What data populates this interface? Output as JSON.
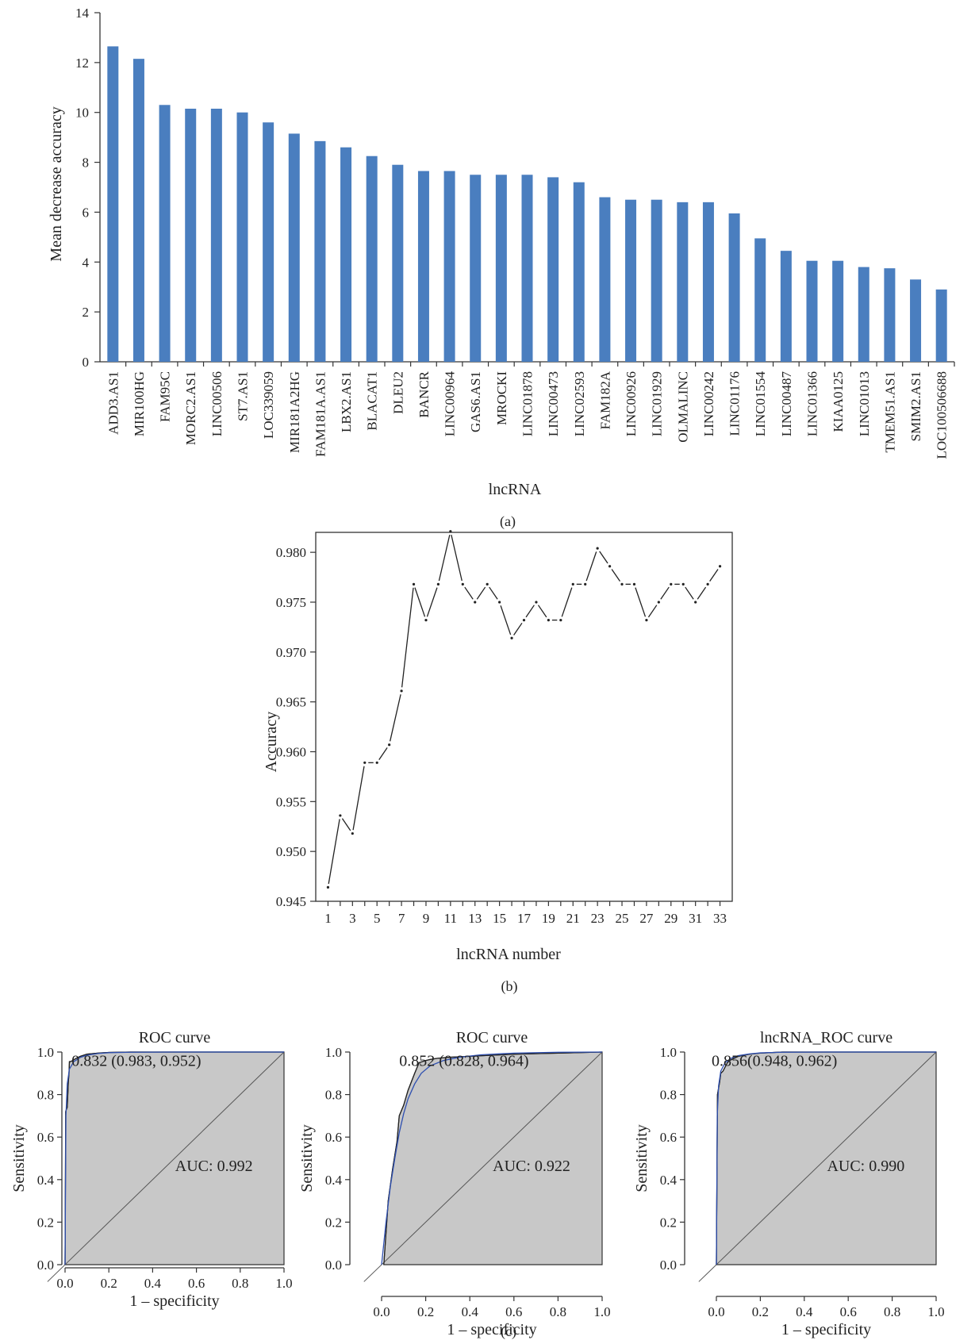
{
  "colors": {
    "bar": "#4a7ebf",
    "roc_fill": "#c8c8c8",
    "smooth_curve": "#2e4fb0",
    "empirical_curve": "#222222",
    "diagonal": "#555555"
  },
  "panels": {
    "a": "(a)",
    "b": "(b)",
    "c": "(c)"
  },
  "chart_data": [
    {
      "type": "bar",
      "panel": "(a)",
      "xlabel": "lncRNA",
      "ylabel": "Mean decrease accuracy",
      "ylim": [
        0,
        14
      ],
      "yticks": [
        0,
        2,
        4,
        6,
        8,
        10,
        12,
        14
      ],
      "grid": false,
      "categories": [
        "ADD3.AS1",
        "MIR100HG",
        "FAM95C",
        "MORC2.AS1",
        "LINC00506",
        "ST7.AS1",
        "LOC339059",
        "MIR181A2HG",
        "FAM181A.AS1",
        "LBX2.AS1",
        "BLACAT1",
        "DLEU2",
        "BANCR",
        "LINC00964",
        "GAS6.AS1",
        "MROCKI",
        "LINC01878",
        "LINC00473",
        "LINC02593",
        "FAM182A",
        "LINC00926",
        "LINC01929",
        "OLMALINC",
        "LINC00242",
        "LINC01176",
        "LINC01554",
        "LINC00487",
        "LINC01366",
        "KIAA0125",
        "LINC01013",
        "TMEM51.AS1",
        "SMIM2.AS1",
        "LOC100506688"
      ],
      "values": [
        12.65,
        12.15,
        10.3,
        10.15,
        10.15,
        10.0,
        9.6,
        9.15,
        8.85,
        8.6,
        8.25,
        7.9,
        7.65,
        7.65,
        7.5,
        7.5,
        7.5,
        7.4,
        7.2,
        6.6,
        6.5,
        6.5,
        6.4,
        6.4,
        5.95,
        4.95,
        4.45,
        4.05,
        4.05,
        3.8,
        3.75,
        3.3,
        2.9
      ]
    },
    {
      "type": "line",
      "panel": "(b)",
      "xlabel": "lncRNA number",
      "ylabel": "Accuracy",
      "xlim": [
        0,
        34
      ],
      "ylim": [
        0.945,
        0.982
      ],
      "yticks": [
        0.945,
        0.95,
        0.955,
        0.96,
        0.965,
        0.97,
        0.975,
        0.98
      ],
      "xticks": [
        1,
        3,
        5,
        7,
        9,
        11,
        13,
        15,
        17,
        19,
        21,
        23,
        25,
        27,
        29,
        31,
        33
      ],
      "grid": false,
      "x": [
        1,
        2,
        3,
        4,
        5,
        6,
        7,
        8,
        9,
        10,
        11,
        12,
        13,
        14,
        15,
        16,
        17,
        18,
        19,
        20,
        21,
        22,
        23,
        24,
        25,
        26,
        27,
        28,
        29,
        30,
        31,
        32,
        33
      ],
      "y": [
        0.9464,
        0.9536,
        0.9518,
        0.9589,
        0.9589,
        0.9607,
        0.9661,
        0.9768,
        0.9732,
        0.9768,
        0.9821,
        0.9768,
        0.975,
        0.9768,
        0.975,
        0.9714,
        0.9732,
        0.975,
        0.9732,
        0.9732,
        0.9768,
        0.9768,
        0.9804,
        0.9786,
        0.9768,
        0.9768,
        0.9732,
        0.975,
        0.9768,
        0.9768,
        0.975,
        0.9768,
        0.9786
      ]
    },
    {
      "type": "line",
      "panel": "(c)",
      "title": "ROC curve",
      "xlabel": "1 – specificity",
      "ylabel": "Sensitivity",
      "xlim": [
        0,
        1
      ],
      "ylim": [
        0,
        1
      ],
      "ticks": [
        "0.0",
        "0.2",
        "0.4",
        "0.6",
        "0.8",
        "1.0"
      ],
      "threshold_label": "0.832 (0.983, 0.952)",
      "auc_label": "AUC: 0.992",
      "series": [
        {
          "x": [
            0,
            0.003,
            0.006,
            0.01,
            0.015,
            0.018,
            0.02,
            0.025,
            0.035,
            0.05,
            0.07,
            0.1,
            0.15,
            0.2,
            0.3,
            0.5,
            1.0
          ],
          "y": [
            0,
            0.72,
            0.73,
            0.74,
            0.86,
            0.9,
            0.955,
            0.955,
            0.96,
            0.97,
            0.98,
            0.99,
            0.995,
            0.998,
            1.0,
            1.0,
            1.0
          ]
        },
        {
          "x": [
            0,
            0.004,
            0.01,
            0.02,
            0.04,
            0.07,
            0.1,
            0.15,
            0.2,
            0.3,
            0.5,
            1.0
          ],
          "y": [
            0,
            0.7,
            0.85,
            0.92,
            0.955,
            0.975,
            0.985,
            0.993,
            0.997,
            0.999,
            1.0,
            1.0
          ]
        }
      ]
    },
    {
      "type": "line",
      "panel": "(c)",
      "title": "ROC curve",
      "xlabel": "1 – specificity",
      "ylabel": "Sensitivity",
      "xlim": [
        0,
        1
      ],
      "ylim": [
        0,
        1
      ],
      "ticks": [
        "0.0",
        "0.2",
        "0.4",
        "0.6",
        "0.8",
        "1.0"
      ],
      "threshold_label": "0.852 (0.828, 0.964)",
      "auc_label": "AUC: 0.922",
      "series": [
        {
          "x": [
            0.01,
            0.02,
            0.03,
            0.05,
            0.07,
            0.08,
            0.1,
            0.12,
            0.15,
            0.17,
            0.2,
            0.22,
            0.25,
            0.3,
            0.4,
            0.6,
            0.8,
            1.0
          ],
          "y": [
            0.0,
            0.15,
            0.3,
            0.45,
            0.58,
            0.7,
            0.75,
            0.82,
            0.9,
            0.95,
            0.96,
            0.965,
            0.97,
            0.975,
            0.98,
            0.99,
            0.995,
            1.0
          ]
        },
        {
          "x": [
            0.0,
            0.02,
            0.04,
            0.06,
            0.08,
            0.1,
            0.12,
            0.15,
            0.18,
            0.22,
            0.28,
            0.35,
            0.45,
            0.6,
            0.8,
            1.0
          ],
          "y": [
            0.0,
            0.2,
            0.37,
            0.5,
            0.62,
            0.71,
            0.78,
            0.85,
            0.9,
            0.935,
            0.96,
            0.975,
            0.987,
            0.995,
            0.999,
            1.0
          ]
        }
      ]
    },
    {
      "type": "line",
      "panel": "(c)",
      "title": "lncRNA_ROC curve",
      "xlabel": "1 – specificity",
      "ylabel": "Sensitivity",
      "xlim": [
        0,
        1
      ],
      "ylim": [
        0,
        1
      ],
      "ticks": [
        "0.0",
        "0.2",
        "0.4",
        "0.6",
        "0.8",
        "1.0"
      ],
      "threshold_label": "0.856(0.948, 0.962)",
      "auc_label": "AUC: 0.990",
      "series": [
        {
          "x": [
            0,
            0.005,
            0.01,
            0.015,
            0.02,
            0.03,
            0.05,
            0.06,
            0.08,
            0.1,
            0.15,
            0.2,
            0.3,
            0.5,
            1.0
          ],
          "y": [
            0,
            0.8,
            0.83,
            0.86,
            0.9,
            0.91,
            0.95,
            0.96,
            0.97,
            0.98,
            0.99,
            0.995,
            1.0,
            1.0,
            1.0
          ]
        },
        {
          "x": [
            0,
            0.004,
            0.01,
            0.02,
            0.04,
            0.07,
            0.1,
            0.15,
            0.2,
            0.3,
            0.5,
            1.0
          ],
          "y": [
            0,
            0.7,
            0.84,
            0.91,
            0.95,
            0.972,
            0.983,
            0.991,
            0.996,
            0.999,
            1.0,
            1.0
          ]
        }
      ]
    }
  ]
}
